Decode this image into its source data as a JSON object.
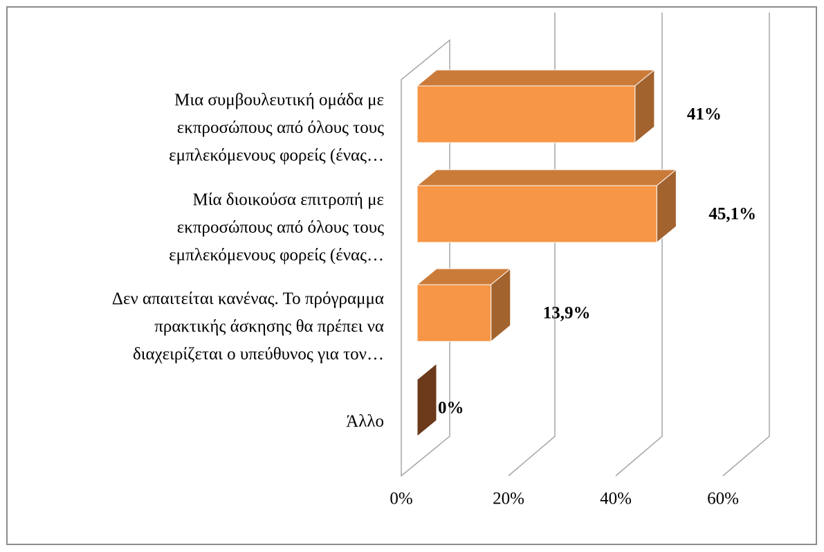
{
  "chart_data": {
    "type": "bar3d_horizontal",
    "categories": [
      "Μια συμβουλευτική ομάδα με\nεκπροσώπους από όλους τους\nεμπλεκόμενους φορείς (ένας…",
      "Μία διοικούσα επιτροπή με\nεκπροσώπους από όλους τους\nεμπλεκόμενους φορείς (ένας…",
      "Δεν απαιτείται κανένας. Το πρόγραμμα\nπρακτικής άσκησης θα πρέπει να\nδιαχειρίζεται ο υπεύθυνος για τον…",
      "Άλλο"
    ],
    "values": [
      41,
      45.1,
      13.9,
      0
    ],
    "value_labels": [
      "41%",
      "45,1%",
      "13,9%",
      "0%"
    ],
    "color": "#f79646",
    "xlim": [
      0,
      60
    ],
    "xticks": [
      {
        "value": 0,
        "label": "0%"
      },
      {
        "value": 20,
        "label": "20%"
      },
      {
        "value": 40,
        "label": "40%"
      },
      {
        "value": 60,
        "label": "60%"
      }
    ],
    "grid": true
  }
}
